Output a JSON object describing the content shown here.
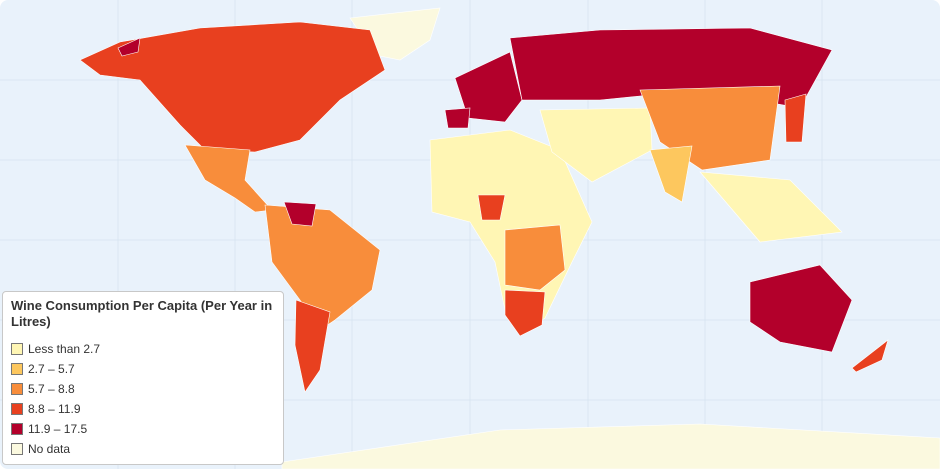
{
  "legend": {
    "title": "Wine Consumption Per Capita (Per Year in Litres)",
    "items": [
      {
        "label": "Less than 2.7",
        "color": "#fff6b4"
      },
      {
        "label": "2.7 – 5.7",
        "color": "#fdc75e"
      },
      {
        "label": "5.7 – 8.8",
        "color": "#f88d3b"
      },
      {
        "label": "8.8 – 11.9",
        "color": "#e8401f"
      },
      {
        "label": "11.9 – 17.5",
        "color": "#b3002b"
      },
      {
        "label": "No data",
        "color": "#fbf9df"
      }
    ]
  }
}
